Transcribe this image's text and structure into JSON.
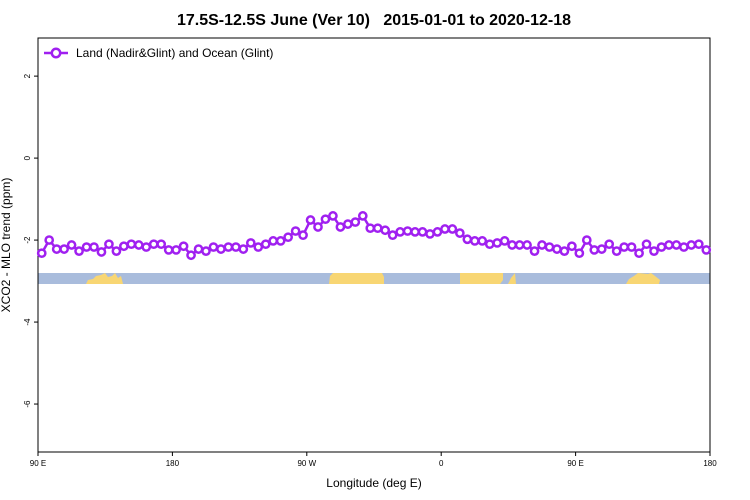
{
  "chart_data": {
    "type": "line",
    "title": "17.5S-12.5S June (Ver 10)   2015-01-01 to 2020-12-18",
    "x_label": "Longitude (deg E)",
    "y_label": "XCO2 - MLO trend (ppm)",
    "x": [
      92.5,
      97.5,
      102.5,
      107.5,
      112.5,
      117.5,
      122.5,
      127.5,
      132.5,
      137.5,
      142.5,
      147.5,
      152.5,
      157.5,
      162.5,
      167.5,
      172.5,
      177.5,
      182.5,
      187.5,
      192.5,
      197.5,
      202.5,
      207.5,
      212.5,
      217.5,
      222.5,
      227.5,
      232.5,
      237.5,
      242.5,
      247.5,
      252.5,
      257.5,
      262.5,
      267.5,
      272.5,
      277.5,
      282.5,
      287.5,
      292.5,
      297.5,
      302.5,
      307.5,
      312.5,
      317.5,
      322.5,
      327.5,
      332.5,
      337.5,
      342.5,
      347.5,
      352.5,
      357.5,
      362.5,
      367.5,
      372.5,
      377.5,
      382.5,
      387.5,
      392.5,
      397.5,
      402.5,
      407.5,
      412.5,
      417.5,
      422.5,
      427.5,
      432.5,
      437.5,
      442.5,
      447.5,
      452.5,
      457.5,
      462.5,
      467.5,
      472.5,
      477.5,
      482.5,
      487.5,
      492.5,
      497.5,
      502.5,
      507.5,
      512.5,
      517.5,
      522.5,
      527.5,
      532.5,
      537.5
    ],
    "series": [
      {
        "name": "Land (Nadir&Glint) and Ocean (Glint)",
        "color": "#a020f0",
        "values": [
          -2.32,
          -2.0,
          -2.22,
          -2.22,
          -2.12,
          -2.27,
          -2.17,
          -2.17,
          -2.29,
          -2.1,
          -2.27,
          -2.15,
          -2.1,
          -2.12,
          -2.17,
          -2.1,
          -2.1,
          -2.24,
          -2.24,
          -2.15,
          -2.37,
          -2.22,
          -2.27,
          -2.17,
          -2.22,
          -2.17,
          -2.17,
          -2.22,
          -2.07,
          -2.17,
          -2.1,
          -2.02,
          -2.02,
          -1.93,
          -1.78,
          -1.88,
          -1.51,
          -1.68,
          -1.49,
          -1.41,
          -1.68,
          -1.61,
          -1.56,
          -1.41,
          -1.71,
          -1.71,
          -1.76,
          -1.88,
          -1.8,
          -1.78,
          -1.8,
          -1.8,
          -1.85,
          -1.8,
          -1.73,
          -1.73,
          -1.83,
          -1.98,
          -2.02,
          -2.02,
          -2.1,
          -2.07,
          -2.02,
          -2.12,
          -2.12,
          -2.12,
          -2.27,
          -2.12,
          -2.17,
          -2.22,
          -2.27,
          -2.15,
          -2.32,
          -2.0,
          -2.24,
          -2.22,
          -2.1,
          -2.27,
          -2.17,
          -2.17,
          -2.32,
          -2.1,
          -2.27,
          -2.17,
          -2.12,
          -2.12,
          -2.17,
          -2.12,
          -2.1,
          -2.24
        ]
      }
    ],
    "xlim": [
      90,
      540
    ],
    "xticks": [
      {
        "value": 90,
        "label": "90 E"
      },
      180,
      {
        "value": 270,
        "label": "90 W"
      },
      {
        "value": 360,
        "label": "0"
      },
      {
        "value": 450,
        "label": "90 E"
      },
      {
        "value": 540,
        "label": "180"
      }
    ],
    "ylim": [
      -7.17,
      2.93
    ],
    "yticks": [
      2,
      0,
      -2,
      -4,
      -6
    ],
    "grid": false,
    "legend": "top-left"
  }
}
